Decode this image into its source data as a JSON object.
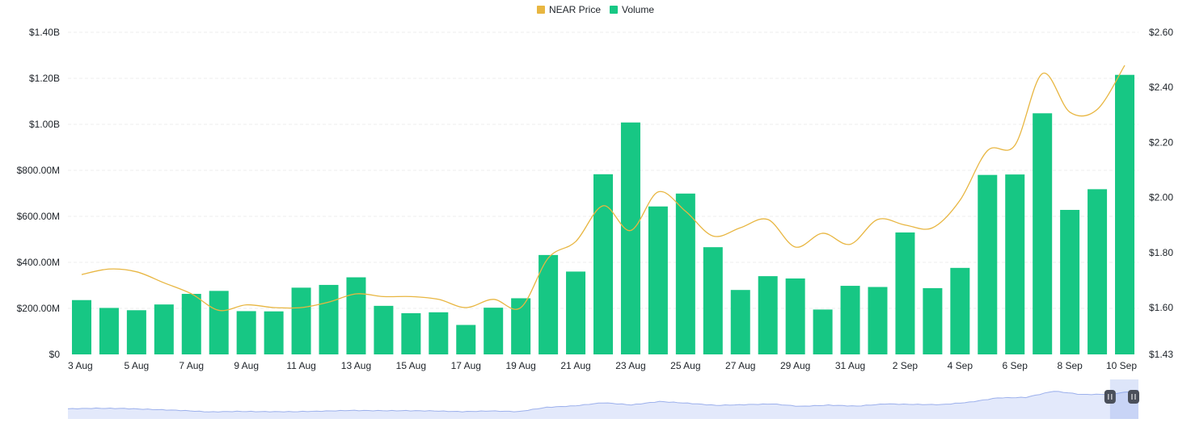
{
  "chart_data": {
    "type": "bar+line",
    "title": "",
    "legend": {
      "placement": "top-center",
      "items": [
        "NEAR Price",
        "Volume"
      ]
    },
    "colors": {
      "price": "#e8b641",
      "volume": "#17c784",
      "navigator_fill": "#e3e9fb",
      "navigator_line": "#9cb0ec",
      "grid": "#eeeeee"
    },
    "categories": [
      "3 Aug",
      "4 Aug",
      "5 Aug",
      "6 Aug",
      "7 Aug",
      "8 Aug",
      "9 Aug",
      "10 Aug",
      "11 Aug",
      "12 Aug",
      "13 Aug",
      "14 Aug",
      "15 Aug",
      "16 Aug",
      "17 Aug",
      "18 Aug",
      "19 Aug",
      "20 Aug",
      "21 Aug",
      "22 Aug",
      "23 Aug",
      "24 Aug",
      "25 Aug",
      "26 Aug",
      "27 Aug",
      "28 Aug",
      "29 Aug",
      "30 Aug",
      "31 Aug",
      "1 Sep",
      "2 Sep",
      "3 Sep",
      "4 Sep",
      "5 Sep",
      "6 Sep",
      "7 Sep",
      "8 Sep",
      "9 Sep",
      "10 Sep"
    ],
    "x_tick_labels": [
      "3 Aug",
      "5 Aug",
      "7 Aug",
      "9 Aug",
      "11 Aug",
      "13 Aug",
      "15 Aug",
      "17 Aug",
      "19 Aug",
      "21 Aug",
      "23 Aug",
      "25 Aug",
      "27 Aug",
      "29 Aug",
      "31 Aug",
      "2 Sep",
      "4 Sep",
      "6 Sep",
      "8 Sep",
      "10 Sep"
    ],
    "series": [
      {
        "name": "Volume",
        "axis": "left",
        "unit": "USD",
        "values": [
          236000000,
          202000000,
          192000000,
          217000000,
          263000000,
          276000000,
          188000000,
          187000000,
          290000000,
          302000000,
          335000000,
          211000000,
          179000000,
          183000000,
          128000000,
          203000000,
          244000000,
          432000000,
          360000000,
          783000000,
          1008000000,
          643000000,
          699000000,
          466000000,
          280000000,
          340000000,
          330000000,
          195000000,
          298000000,
          293000000,
          530000000,
          288000000,
          376000000,
          780000000,
          782000000,
          1048000000,
          628000000,
          718000000,
          1215000000
        ]
      },
      {
        "name": "NEAR Price",
        "axis": "right",
        "unit": "USD",
        "values": [
          1.72,
          1.74,
          1.73,
          1.69,
          1.65,
          1.59,
          1.61,
          1.6,
          1.6,
          1.62,
          1.65,
          1.64,
          1.64,
          1.63,
          1.6,
          1.63,
          1.6,
          1.78,
          1.84,
          1.97,
          1.88,
          2.02,
          1.95,
          1.86,
          1.89,
          1.92,
          1.82,
          1.87,
          1.83,
          1.92,
          1.9,
          1.89,
          1.99,
          2.17,
          2.19,
          2.45,
          2.31,
          2.32,
          2.48
        ]
      }
    ],
    "y_left": {
      "min": 0,
      "max": 1400000000,
      "ticks": [
        0,
        200000000,
        400000000,
        600000000,
        800000000,
        1000000000,
        1200000000,
        1400000000
      ],
      "tick_labels": [
        "$0",
        "$200.00M",
        "$400.00M",
        "$600.00M",
        "$800.00M",
        "$1.00B",
        "$1.20B",
        "$1.40B"
      ]
    },
    "y_right": {
      "min": 1.43,
      "max": 2.6,
      "ticks": [
        1.43,
        1.6,
        1.8,
        2.0,
        2.2,
        2.4,
        2.6
      ],
      "tick_labels": [
        "$1.43",
        "$1.60",
        "$1.80",
        "$2.00",
        "$2.20",
        "$2.40",
        "$2.60"
      ]
    },
    "grid": true,
    "navigator": {
      "visible": true,
      "selection": [
        0.978,
        1.0
      ],
      "handles": [
        "pause-like-handle-left",
        "pause-like-handle-right"
      ]
    }
  }
}
